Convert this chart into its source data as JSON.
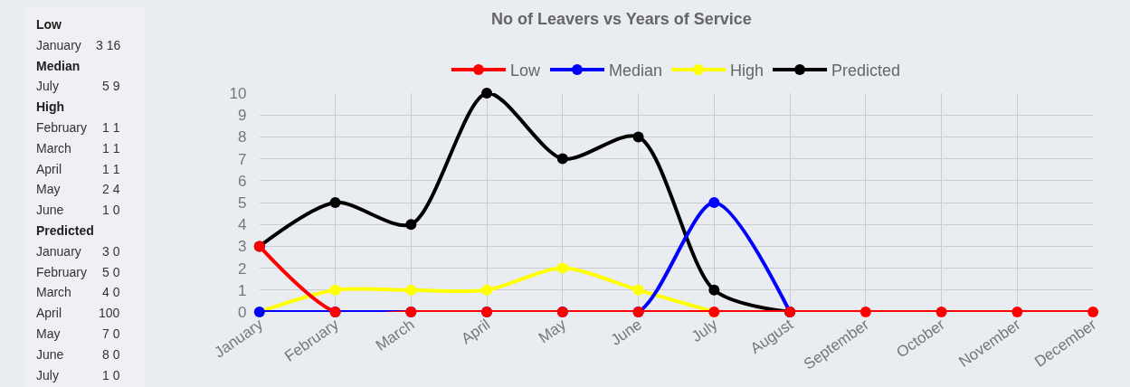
{
  "chart_data": [
    {
      "type": "other",
      "annotations": [
        "Low",
        "January 3 16",
        "Median",
        "July 5 9",
        "High",
        "February 1 1",
        "March 1 1",
        "April 1 1",
        "May 2 4",
        "June 1 0",
        "Predicted",
        "January 3 0",
        "February 5 0",
        "March 4 0",
        "April 100",
        "May 7 0",
        "June 8 0",
        "July 1 0"
      ]
    },
    {
      "type": "line",
      "title": "No of Leavers vs Years of Service",
      "categories": [
        "January",
        "February",
        "March",
        "April",
        "May",
        "June",
        "July",
        "August",
        "September",
        "October",
        "November",
        "December"
      ],
      "series": [
        {
          "name": "Low",
          "color": "#ff0000",
          "values": [
            3,
            0,
            0,
            0,
            0,
            0,
            0,
            0,
            0,
            0,
            0,
            0
          ]
        },
        {
          "name": "Median",
          "color": "#0000ff",
          "values": [
            0,
            0,
            0,
            0,
            0,
            0,
            5,
            0,
            null,
            null,
            null,
            null
          ]
        },
        {
          "name": "High",
          "color": "#ffff00",
          "values": [
            0,
            1,
            1,
            1,
            2,
            1,
            0,
            null,
            null,
            null,
            null,
            null
          ]
        },
        {
          "name": "Predicted",
          "color": "#000000",
          "values": [
            3,
            5,
            4,
            10,
            7,
            8,
            1,
            0,
            null,
            null,
            null,
            null
          ]
        }
      ],
      "ylim": [
        0,
        10
      ],
      "yticks": [
        0,
        1,
        2,
        3,
        4,
        5,
        6,
        7,
        8,
        9,
        10
      ],
      "grid": true,
      "legend": "top",
      "marker": "circle",
      "line_style": "solid"
    }
  ]
}
